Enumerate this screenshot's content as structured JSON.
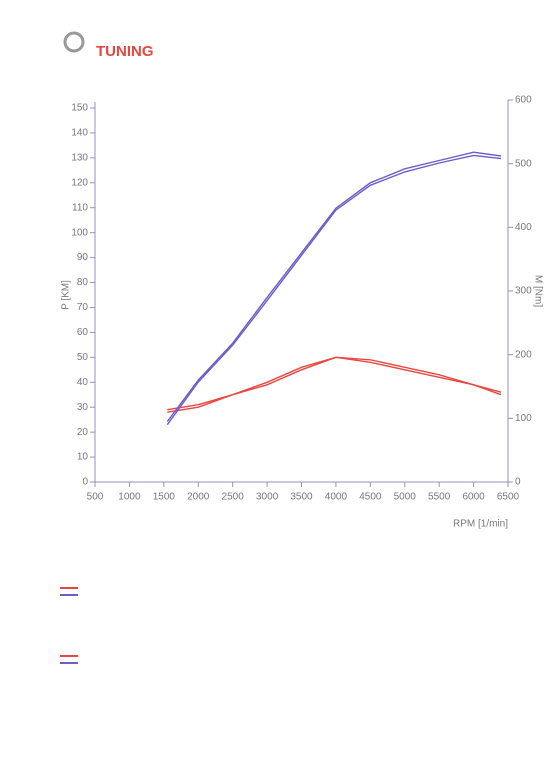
{
  "logo": "TUNING",
  "chart_data": {
    "type": "line",
    "xlabel": "RPM [1/min]",
    "ylabel": "P [KM]",
    "y2label": "M [Nm]",
    "x": [
      1550,
      2000,
      2500,
      3000,
      3500,
      4000,
      4500,
      5000,
      5500,
      6000,
      6400
    ],
    "xlim": [
      500,
      6500
    ],
    "xticks": [
      500,
      1000,
      1500,
      2000,
      2500,
      3000,
      3500,
      4000,
      4500,
      5000,
      5500,
      6000,
      6500
    ],
    "ylim": [
      0,
      150
    ],
    "yticks": [
      0,
      10,
      20,
      30,
      40,
      50,
      60,
      70,
      80,
      90,
      100,
      110,
      120,
      130,
      140,
      150
    ],
    "y2lim": [
      0,
      600
    ],
    "y2ticks": [
      0,
      100,
      200,
      300,
      400,
      500,
      600
    ],
    "series": [
      {
        "color": "#e8473f",
        "values": [
          28,
          30,
          35,
          39,
          45,
          50,
          48,
          45,
          42,
          39,
          36
        ]
      },
      {
        "color": "#e8473f",
        "values": [
          29,
          31,
          35,
          40,
          46,
          50,
          49,
          46,
          43,
          39,
          35
        ]
      },
      {
        "color": "#6f5cc8",
        "axis": "y2",
        "values": [
          90,
          157,
          215,
          285,
          356,
          427,
          466,
          487,
          501,
          513,
          508
        ]
      },
      {
        "color": "#6f5cc8",
        "axis": "y2",
        "values": [
          95,
          160,
          218,
          290,
          360,
          430,
          470,
          492,
          505,
          518,
          512
        ]
      }
    ]
  }
}
